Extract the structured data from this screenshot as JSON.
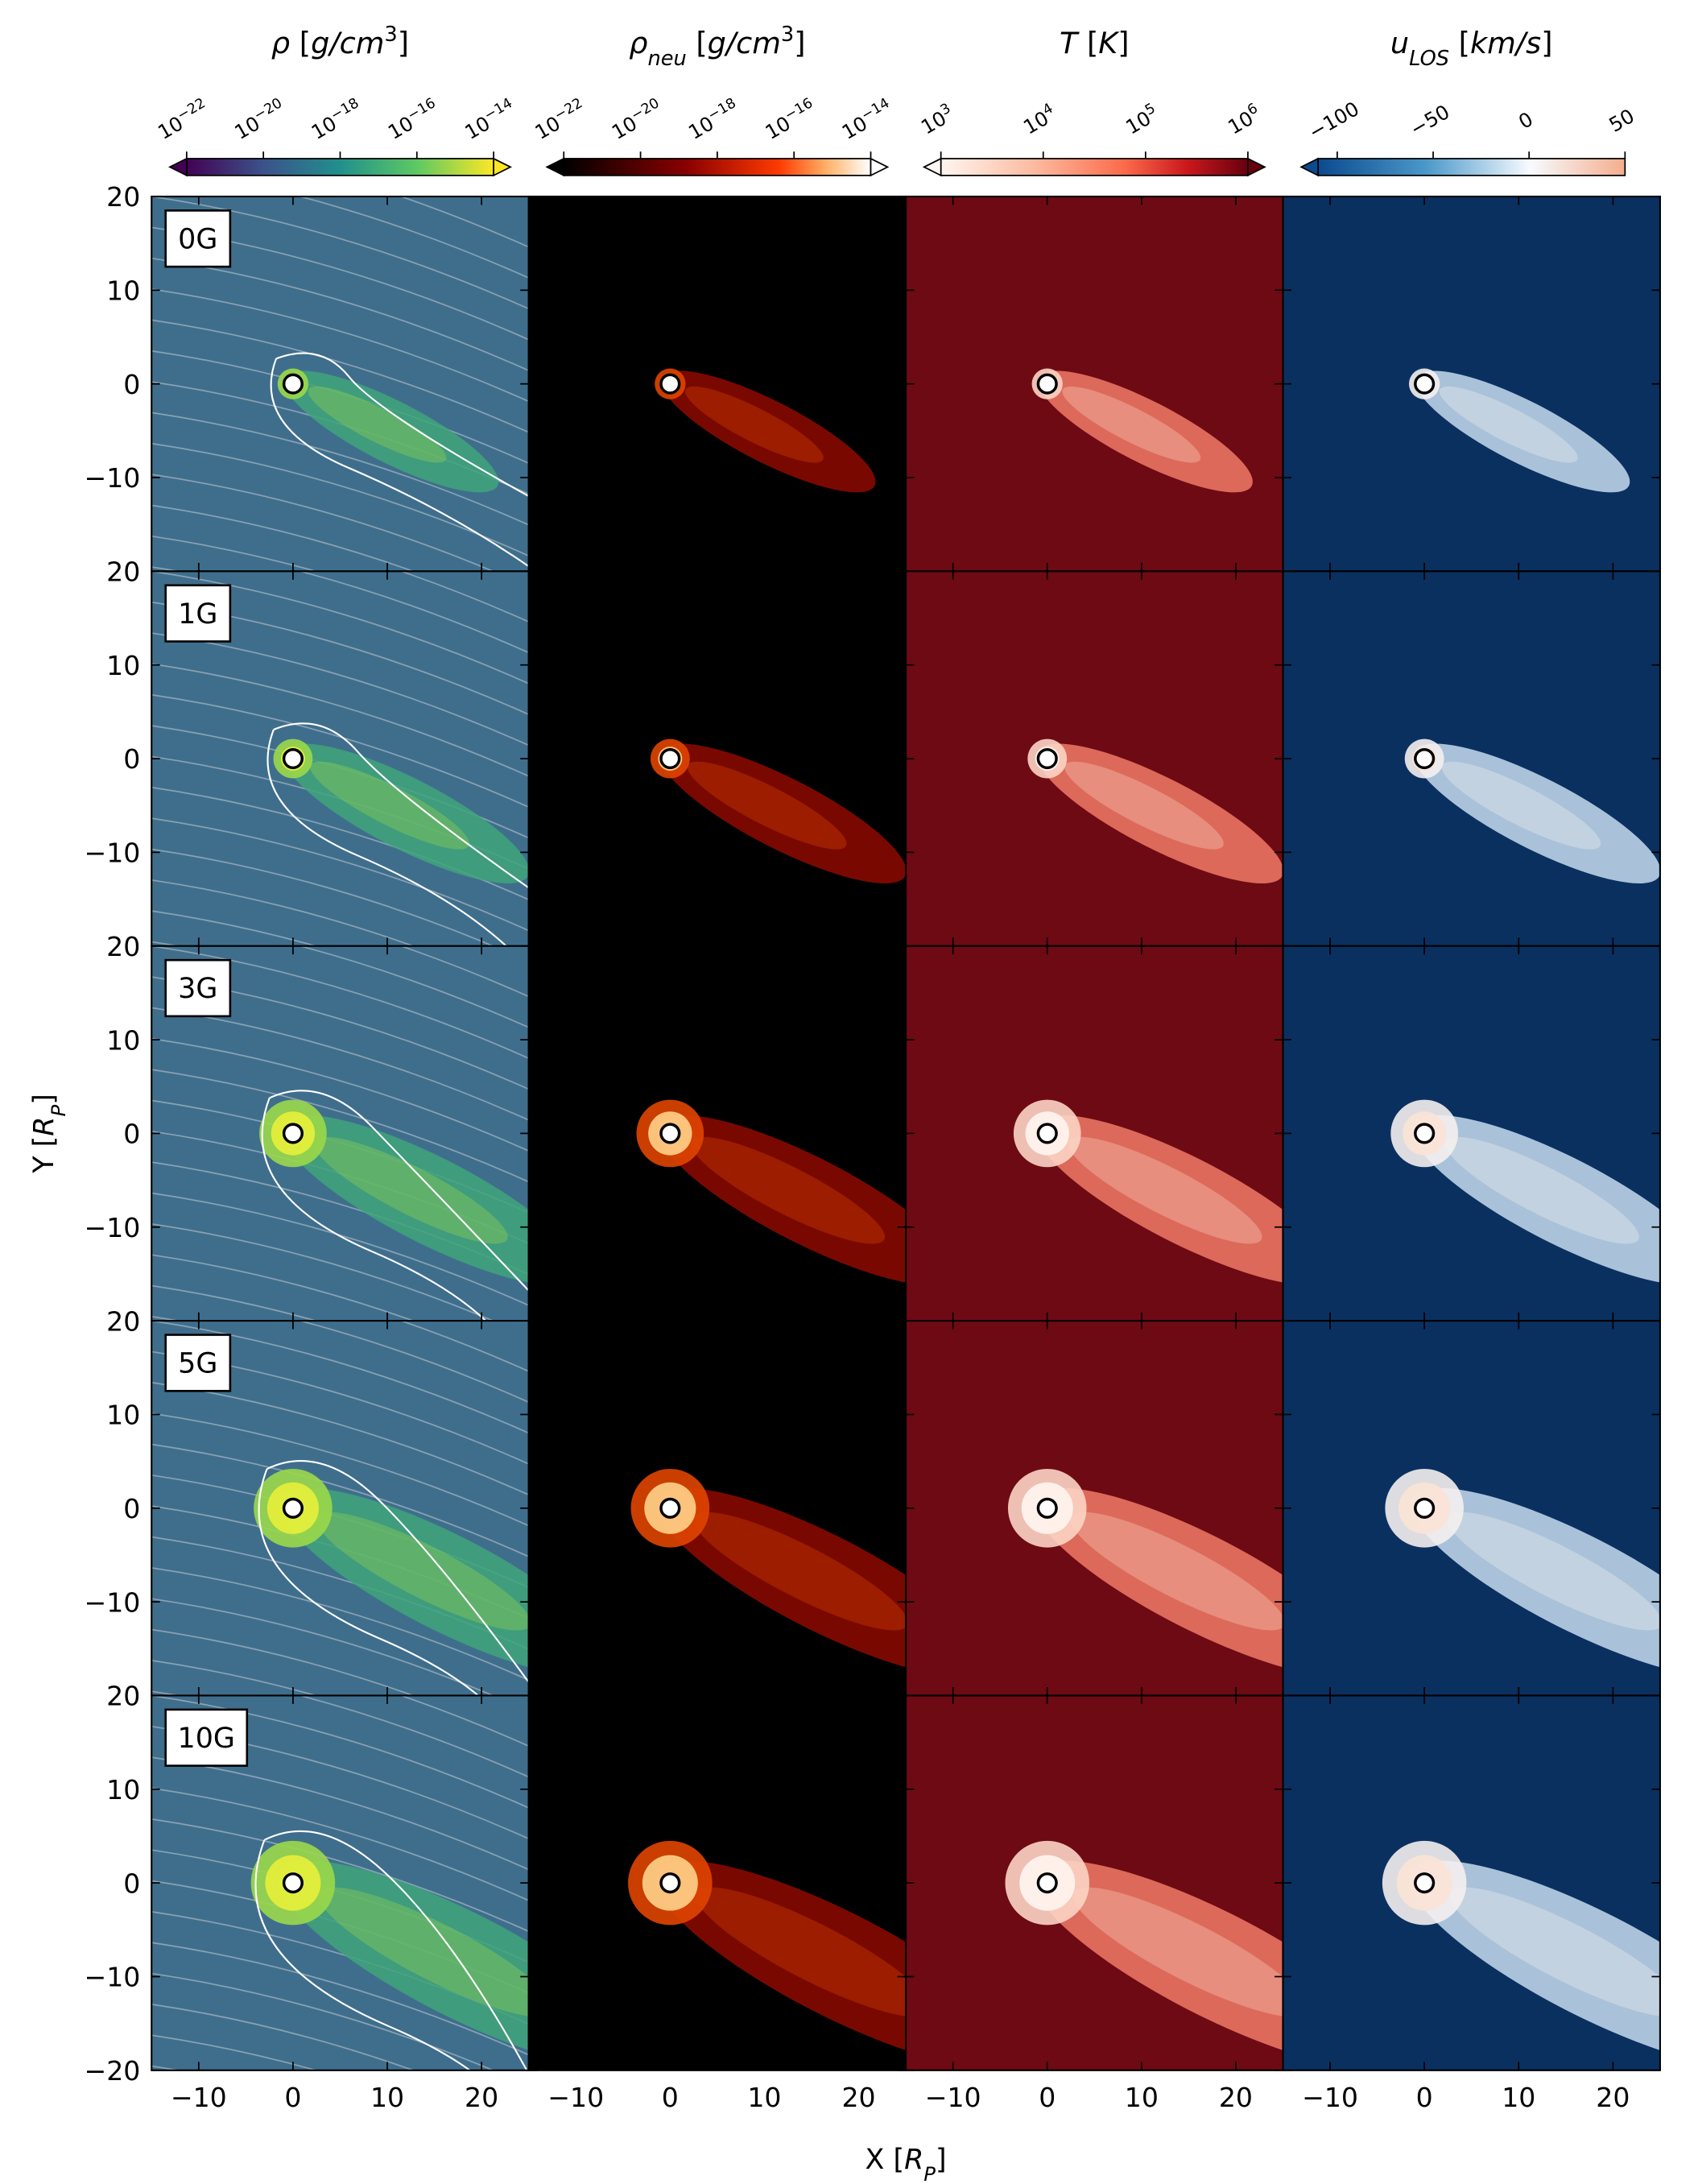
{
  "chart_data": {
    "type": "heatmap-grid",
    "x_label": [
      {
        "text": "X ["
      },
      {
        "text": "R",
        "style": "italic"
      },
      {
        "text": "P",
        "style": "italic sub"
      },
      {
        "text": "]"
      }
    ],
    "y_label": [
      {
        "text": "Y ["
      },
      {
        "text": "R",
        "style": "italic"
      },
      {
        "text": "P",
        "style": "italic sub"
      },
      {
        "text": "]"
      }
    ],
    "xlim": [
      -15,
      25
    ],
    "xticks": [
      {
        "value": -10,
        "label": "−10"
      },
      0,
      10,
      20
    ],
    "ylim": [
      -20,
      20
    ],
    "yticks": [
      {
        "value": -20,
        "label": "−20"
      },
      {
        "value": -10,
        "label": "−10"
      },
      0,
      10,
      20
    ],
    "rows": [
      "0G",
      "1G",
      "3G",
      "5G",
      "10G"
    ],
    "colorbars": [
      {
        "label": [
          {
            "text": "ρ",
            "style": "italic"
          },
          {
            "text": " ["
          },
          {
            "text": "g/cm",
            "style": "italic"
          },
          {
            "text": "3",
            "style": "sup"
          },
          {
            "text": "]"
          }
        ],
        "cmap": "viridis",
        "log": true,
        "extend": "both",
        "lim": [
          1e-22,
          1e-14
        ],
        "ticks": [
          {
            "value": 1e-22,
            "label": "10",
            "sup": "−22"
          },
          {
            "value": 1e-20,
            "label": "10",
            "sup": "−20"
          },
          {
            "value": 1e-18,
            "label": "10",
            "sup": "−18"
          },
          {
            "value": 1e-16,
            "label": "10",
            "sup": "−16"
          },
          {
            "value": 1e-14,
            "label": "10",
            "sup": "−14"
          }
        ]
      },
      {
        "label": [
          {
            "text": "ρ",
            "style": "italic"
          },
          {
            "text": "neu",
            "style": "italic sub"
          },
          {
            "text": " ["
          },
          {
            "text": "g/cm",
            "style": "italic"
          },
          {
            "text": "3",
            "style": "sup"
          },
          {
            "text": "]"
          }
        ],
        "cmap": "heat",
        "log": true,
        "extend": "both",
        "lim": [
          1e-22,
          1e-14
        ],
        "ticks": [
          {
            "value": 1e-22,
            "label": "10",
            "sup": "−22"
          },
          {
            "value": 1e-20,
            "label": "10",
            "sup": "−20"
          },
          {
            "value": 1e-18,
            "label": "10",
            "sup": "−18"
          },
          {
            "value": 1e-16,
            "label": "10",
            "sup": "−16"
          },
          {
            "value": 1e-14,
            "label": "10",
            "sup": "−14"
          }
        ]
      },
      {
        "label": [
          {
            "text": "T",
            "style": "italic"
          },
          {
            "text": " ["
          },
          {
            "text": "K",
            "style": "italic"
          },
          {
            "text": "]"
          }
        ],
        "cmap": "reds",
        "log": true,
        "extend": "both",
        "lim": [
          1000,
          1000000
        ],
        "ticks": [
          {
            "value": 1000,
            "label": "10",
            "sup": "3"
          },
          {
            "value": 10000,
            "label": "10",
            "sup": "4"
          },
          {
            "value": 100000,
            "label": "10",
            "sup": "5"
          },
          {
            "value": 1000000,
            "label": "10",
            "sup": "6"
          }
        ]
      },
      {
        "label": [
          {
            "text": "u",
            "style": "italic"
          },
          {
            "text": "LOS",
            "style": "italic sub"
          },
          {
            "text": " ["
          },
          {
            "text": "km/s",
            "style": "italic"
          },
          {
            "text": "]"
          }
        ],
        "cmap": "rdbu",
        "log": false,
        "extend": "min",
        "lim": [
          -110,
          50
        ],
        "ticks": [
          {
            "value": -100,
            "label": "−100"
          },
          {
            "value": -50,
            "label": "−50"
          },
          0,
          50
        ]
      }
    ]
  }
}
